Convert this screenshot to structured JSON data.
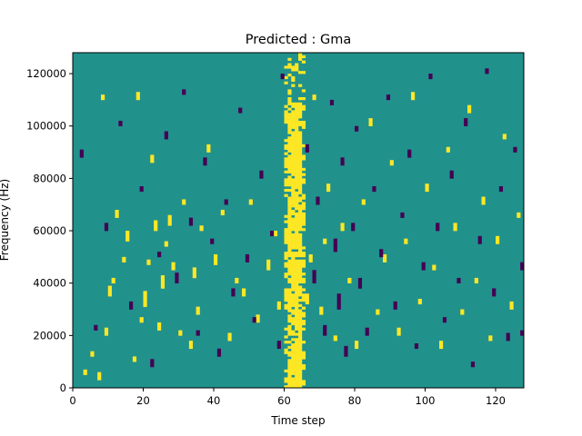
{
  "chart_data": {
    "type": "heatmap",
    "title": "Predicted : Gma",
    "xlabel": "Time step",
    "ylabel": "Frequency (Hz)",
    "xlim": [
      0,
      128
    ],
    "ylim": [
      0,
      128000
    ],
    "x_ticks": [
      0,
      20,
      40,
      60,
      80,
      100,
      120
    ],
    "y_ticks": [
      0,
      20000,
      40000,
      60000,
      80000,
      100000,
      120000
    ],
    "x_tick_labels": [
      "0",
      "20",
      "40",
      "60",
      "80",
      "100",
      "120"
    ],
    "y_tick_labels": [
      "0",
      "20000",
      "40000",
      "60000",
      "80000",
      "100000",
      "120000"
    ],
    "n_time_steps": 128,
    "n_freq_bins": 128,
    "grid": false,
    "colors": {
      "background": "#21918c",
      "high": "#fde725",
      "low": "#440154"
    },
    "yellow_band": {
      "from": 60,
      "to": 65,
      "fill": 0.88
    },
    "high_segments": [
      [
        3,
        5,
        2
      ],
      [
        5,
        12,
        2
      ],
      [
        7,
        3,
        3
      ],
      [
        8,
        110,
        2
      ],
      [
        9,
        20,
        3
      ],
      [
        10,
        35,
        4
      ],
      [
        11,
        40,
        2
      ],
      [
        12,
        65,
        3
      ],
      [
        14,
        48,
        2
      ],
      [
        15,
        56,
        4
      ],
      [
        17,
        10,
        2
      ],
      [
        18,
        110,
        3
      ],
      [
        19,
        25,
        2
      ],
      [
        20,
        31,
        6
      ],
      [
        21,
        47,
        2
      ],
      [
        22,
        86,
        3
      ],
      [
        23,
        60,
        4
      ],
      [
        24,
        22,
        3
      ],
      [
        25,
        38,
        5
      ],
      [
        26,
        54,
        2
      ],
      [
        27,
        62,
        4
      ],
      [
        28,
        45,
        3
      ],
      [
        30,
        20,
        2
      ],
      [
        31,
        70,
        2
      ],
      [
        33,
        15,
        3
      ],
      [
        34,
        42,
        4
      ],
      [
        35,
        28,
        3
      ],
      [
        36,
        60,
        2
      ],
      [
        38,
        90,
        3
      ],
      [
        40,
        47,
        4
      ],
      [
        42,
        66,
        2
      ],
      [
        44,
        18,
        3
      ],
      [
        46,
        40,
        2
      ],
      [
        48,
        35,
        3
      ],
      [
        50,
        70,
        2
      ],
      [
        52,
        25,
        3
      ],
      [
        55,
        45,
        4
      ],
      [
        57,
        58,
        2
      ],
      [
        58,
        30,
        3
      ],
      [
        66,
        32,
        4
      ],
      [
        67,
        48,
        3
      ],
      [
        68,
        110,
        2
      ],
      [
        70,
        28,
        3
      ],
      [
        71,
        55,
        2
      ],
      [
        72,
        75,
        3
      ],
      [
        74,
        18,
        2
      ],
      [
        76,
        60,
        3
      ],
      [
        78,
        40,
        2
      ],
      [
        80,
        15,
        3
      ],
      [
        82,
        70,
        2
      ],
      [
        84,
        100,
        3
      ],
      [
        86,
        28,
        2
      ],
      [
        88,
        48,
        3
      ],
      [
        90,
        85,
        2
      ],
      [
        92,
        20,
        3
      ],
      [
        94,
        55,
        2
      ],
      [
        96,
        110,
        3
      ],
      [
        98,
        32,
        2
      ],
      [
        100,
        75,
        3
      ],
      [
        102,
        45,
        2
      ],
      [
        104,
        15,
        3
      ],
      [
        106,
        90,
        2
      ],
      [
        108,
        60,
        3
      ],
      [
        110,
        28,
        2
      ],
      [
        112,
        105,
        3
      ],
      [
        114,
        40,
        2
      ],
      [
        116,
        70,
        3
      ],
      [
        118,
        18,
        2
      ],
      [
        120,
        55,
        3
      ],
      [
        122,
        95,
        2
      ],
      [
        124,
        30,
        3
      ],
      [
        126,
        65,
        2
      ]
    ],
    "low_segments": [
      [
        2,
        88,
        3
      ],
      [
        6,
        22,
        2
      ],
      [
        9,
        60,
        3
      ],
      [
        13,
        100,
        2
      ],
      [
        16,
        30,
        3
      ],
      [
        19,
        75,
        2
      ],
      [
        22,
        8,
        3
      ],
      [
        24,
        50,
        2
      ],
      [
        26,
        95,
        3
      ],
      [
        29,
        40,
        4
      ],
      [
        31,
        112,
        2
      ],
      [
        33,
        62,
        3
      ],
      [
        35,
        20,
        2
      ],
      [
        37,
        85,
        3
      ],
      [
        39,
        55,
        2
      ],
      [
        41,
        12,
        3
      ],
      [
        43,
        70,
        2
      ],
      [
        45,
        35,
        3
      ],
      [
        47,
        105,
        2
      ],
      [
        49,
        48,
        3
      ],
      [
        51,
        25,
        2
      ],
      [
        53,
        80,
        3
      ],
      [
        56,
        58,
        2
      ],
      [
        58,
        15,
        3
      ],
      [
        59,
        118,
        2
      ],
      [
        66,
        90,
        3
      ],
      [
        68,
        40,
        5
      ],
      [
        69,
        70,
        3
      ],
      [
        71,
        20,
        4
      ],
      [
        73,
        108,
        2
      ],
      [
        74,
        52,
        5
      ],
      [
        75,
        30,
        6
      ],
      [
        76,
        85,
        3
      ],
      [
        77,
        12,
        4
      ],
      [
        79,
        60,
        3
      ],
      [
        80,
        98,
        2
      ],
      [
        81,
        38,
        4
      ],
      [
        83,
        20,
        3
      ],
      [
        85,
        75,
        2
      ],
      [
        87,
        50,
        3
      ],
      [
        89,
        110,
        2
      ],
      [
        91,
        30,
        3
      ],
      [
        93,
        65,
        2
      ],
      [
        95,
        88,
        3
      ],
      [
        97,
        15,
        2
      ],
      [
        99,
        45,
        3
      ],
      [
        101,
        118,
        2
      ],
      [
        103,
        60,
        3
      ],
      [
        105,
        25,
        2
      ],
      [
        107,
        80,
        3
      ],
      [
        109,
        40,
        2
      ],
      [
        111,
        100,
        3
      ],
      [
        113,
        8,
        2
      ],
      [
        115,
        55,
        3
      ],
      [
        117,
        120,
        2
      ],
      [
        119,
        35,
        3
      ],
      [
        121,
        75,
        2
      ],
      [
        123,
        18,
        3
      ],
      [
        125,
        90,
        2
      ],
      [
        127,
        45,
        3
      ],
      [
        127,
        20,
        2
      ]
    ]
  }
}
